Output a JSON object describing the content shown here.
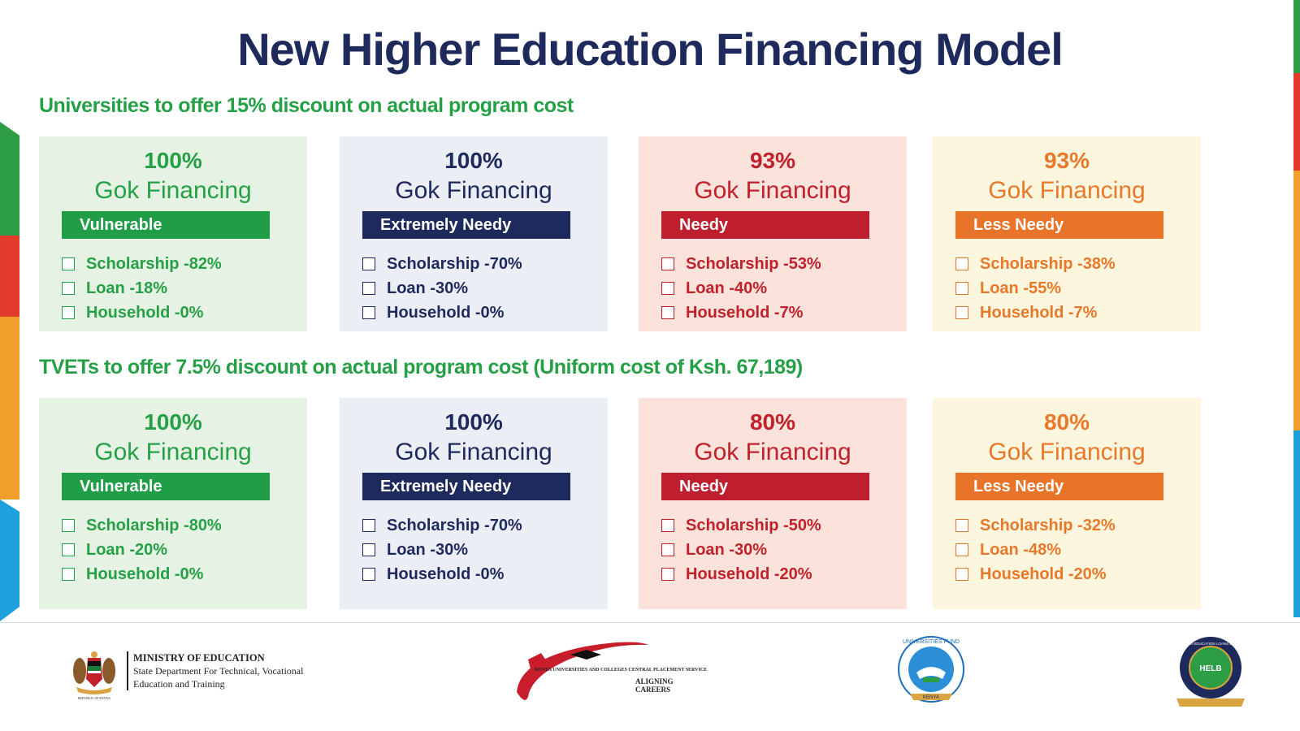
{
  "title": "New Higher Education Financing Model",
  "sections": [
    {
      "heading": "Universities to offer 15% discount on actual program cost",
      "cards": [
        {
          "percent": "100%",
          "financing": "Gok Financing",
          "category": "Vulnerable",
          "items": [
            "Scholarship -82%",
            "Loan -18%",
            "Household -0%"
          ]
        },
        {
          "percent": "100%",
          "financing": "Gok Financing",
          "category": "Extremely Needy",
          "items": [
            "Scholarship -70%",
            "Loan -30%",
            "Household -0%"
          ]
        },
        {
          "percent": "93%",
          "financing": "Gok Financing",
          "category": "Needy",
          "items": [
            "Scholarship -53%",
            "Loan -40%",
            "Household -7%"
          ]
        },
        {
          "percent": "93%",
          "financing": "Gok Financing",
          "category": "Less Needy",
          "items": [
            "Scholarship -38%",
            "Loan -55%",
            "Household -7%"
          ]
        }
      ]
    },
    {
      "heading": "TVETs to offer 7.5% discount on actual program cost (Uniform cost of Ksh. 67,189)",
      "cards": [
        {
          "percent": "100%",
          "financing": "Gok Financing",
          "category": "Vulnerable",
          "items": [
            "Scholarship -80%",
            "Loan -20%",
            "Household -0%"
          ]
        },
        {
          "percent": "100%",
          "financing": "Gok Financing",
          "category": "Extremely Needy",
          "items": [
            "Scholarship -70%",
            "Loan -30%",
            "Household -0%"
          ]
        },
        {
          "percent": "80%",
          "financing": "Gok Financing",
          "category": "Needy",
          "items": [
            "Scholarship -50%",
            "Loan -30%",
            "Household -20%"
          ]
        },
        {
          "percent": "80%",
          "financing": "Gok Financing",
          "category": "Less Needy",
          "items": [
            "Scholarship -32%",
            "Loan -48%",
            "Household -20%"
          ]
        }
      ]
    }
  ],
  "footer": {
    "ministry": {
      "name": "MINISTRY OF EDUCATION",
      "line2": "State Department For Technical, Vocational",
      "line3": "Education and Training",
      "emblem_caption": "REPUBLIC OF KENYA"
    },
    "kuccps": {
      "name": "KENYA UNIVERSITIES AND COLLEGES CENTRAL PLACEMENT SERVICE",
      "tagline": "ALIGNING CAREERS"
    },
    "universities_fund": {
      "top_text": "UNIVERSITIES FUND",
      "bottom_text": "KENYA"
    },
    "helb": {
      "ring_text": "HIGHER EDUCATION LOANS BOARD",
      "abbr": "HELB"
    }
  },
  "colors": {
    "vulnerable": "#1f9e47",
    "extremely_needy": "#1e2a5c",
    "needy": "#be1e2d",
    "less_needy": "#e8742a",
    "title": "#1e2a5c",
    "heading": "#26a046"
  }
}
